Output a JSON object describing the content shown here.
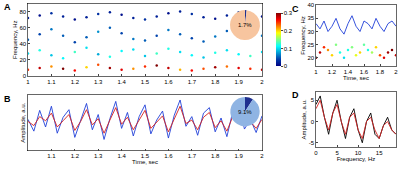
{
  "chart_data": [
    {
      "type": "scatter",
      "label": "A",
      "ylabel": "Frequency, Hz",
      "x": [
        1,
        1.05,
        1.1,
        1.15,
        1.2,
        1.25,
        1.3,
        1.35,
        1.4,
        1.45,
        1.5,
        1.55,
        1.6,
        1.65,
        1.7,
        1.75,
        1.8,
        1.85,
        1.9,
        1.95,
        2
      ],
      "xlim": [
        1,
        2
      ],
      "xticks": [
        1,
        1.1,
        1.2,
        1.3,
        1.4,
        1.5,
        1.6,
        1.7,
        1.8,
        1.9,
        2
      ],
      "ylim": [
        0,
        90
      ],
      "yticks": [
        0,
        20,
        40,
        60,
        80
      ],
      "series": [
        {
          "values": [
            72,
            75,
            78,
            74,
            70,
            73,
            77,
            79,
            76,
            72,
            70,
            74,
            78,
            80,
            77,
            73,
            71,
            75,
            79,
            76,
            74
          ],
          "intensity": [
            0.02,
            0.01,
            0.03,
            0.02,
            0.01,
            0.02,
            0.03,
            0.02,
            0.01,
            0.02,
            0.03,
            0.02,
            0.01,
            0.02,
            0.03,
            0.02,
            0.01,
            0.02,
            0.03,
            0.02,
            0.01
          ]
        },
        {
          "values": [
            45,
            52,
            58,
            50,
            42,
            48,
            55,
            60,
            53,
            46,
            44,
            50,
            57,
            52,
            47,
            43,
            49,
            56,
            60,
            54,
            50
          ],
          "intensity": [
            0.05,
            0.04,
            0.06,
            0.05,
            0.04,
            0.05,
            0.07,
            0.05,
            0.04,
            0.06,
            0.05,
            0.04,
            0.06,
            0.05,
            0.04,
            0.05,
            0.06,
            0.05,
            0.04,
            0.05,
            0.06
          ]
        },
        {
          "values": [
            28,
            32,
            26,
            22,
            30,
            35,
            27,
            24,
            31,
            33,
            25,
            28,
            34,
            30,
            26,
            23,
            29,
            32,
            27,
            25,
            30
          ],
          "intensity": [
            0.1,
            0.12,
            0.09,
            0.11,
            0.13,
            0.1,
            0.08,
            0.12,
            0.11,
            0.1,
            0.09,
            0.13,
            0.12,
            0.1,
            0.11,
            0.09,
            0.12,
            0.1,
            0.11,
            0.13,
            0.1
          ]
        },
        {
          "values": [
            8,
            10,
            12,
            9,
            7,
            11,
            14,
            10,
            8,
            9,
            12,
            13,
            10,
            8,
            7,
            9,
            11,
            12,
            10,
            9,
            8
          ],
          "intensity": [
            0.25,
            0.28,
            0.22,
            0.3,
            0.26,
            0.2,
            0.24,
            0.29,
            0.27,
            0.22,
            0.25,
            0.3,
            0.28,
            0.21,
            0.26,
            0.24,
            0.29,
            0.23,
            0.27,
            0.25,
            0.28
          ]
        }
      ],
      "colorbar": {
        "range": [
          0,
          0.3
        ],
        "ticks": [
          0,
          0.1,
          0.2,
          0.3
        ]
      },
      "inset": {
        "type": "pie",
        "values": [
          1.7,
          98.3
        ],
        "colors": [
          "#1f2f8f",
          "#f7c59f"
        ],
        "label": "1.7%"
      }
    },
    {
      "type": "line",
      "label": "B",
      "xlabel": "Time, sec",
      "ylabel": "Amplitude, a.u.",
      "x": [
        1,
        1.025,
        1.05,
        1.075,
        1.1,
        1.125,
        1.15,
        1.175,
        1.2,
        1.225,
        1.25,
        1.275,
        1.3,
        1.325,
        1.35,
        1.375,
        1.4,
        1.425,
        1.45,
        1.475,
        1.5,
        1.525,
        1.55,
        1.575,
        1.6,
        1.625,
        1.65,
        1.675,
        1.7,
        1.725,
        1.75,
        1.775,
        1.8,
        1.825,
        1.85,
        1.875,
        1.9,
        1.925,
        1.95,
        1.975,
        2
      ],
      "xlim": [
        1,
        2
      ],
      "xticks": [
        1.1,
        1.2,
        1.3,
        1.4,
        1.5,
        1.6,
        1.7,
        1.8,
        1.9,
        2
      ],
      "ylim": [
        -4,
        4
      ],
      "tick_labels": "x",
      "series": [
        {
          "color": "#2040d8",
          "values": [
            0.5,
            -1.2,
            1.8,
            -0.6,
            2.4,
            -1.5,
            0.8,
            1.9,
            -2.1,
            0.3,
            2.8,
            -1.0,
            1.2,
            -2.4,
            0.6,
            3.1,
            -0.8,
            1.5,
            -1.9,
            0.9,
            2.6,
            -1.6,
            0.4,
            1.7,
            -2.2,
            1.1,
            3.3,
            -0.5,
            0.9,
            -1.8,
            1.4,
            2.2,
            -1.3,
            0.7,
            -2.0,
            1.6,
            2.9,
            -0.9,
            0.5,
            -1.4,
            1.0
          ]
        },
        {
          "color": "#d42020",
          "values": [
            0.2,
            -0.4,
            0.9,
            0.3,
            1.4,
            -0.6,
            0.3,
            1.2,
            -1.1,
            0.2,
            1.9,
            -0.3,
            0.6,
            -1.5,
            0.4,
            2.2,
            -0.2,
            0.8,
            -1.0,
            0.5,
            1.8,
            -0.8,
            0.1,
            1.0,
            -1.3,
            0.6,
            2.4,
            -0.1,
            0.4,
            -1.0,
            0.8,
            1.5,
            -0.7,
            0.3,
            -1.2,
            0.9,
            2.0,
            -0.4,
            0.2,
            -0.8,
            0.5
          ]
        }
      ],
      "inset": {
        "type": "pie",
        "values": [
          9.1,
          90.9
        ],
        "colors": [
          "#1f2f8f",
          "#8fb4e3"
        ],
        "label": "9.1%"
      }
    },
    {
      "type": "scatter",
      "label": "C",
      "xlabel": "Time, sec",
      "ylabel": "Frequency, Hz",
      "x": [
        1,
        1.05,
        1.1,
        1.15,
        1.2,
        1.25,
        1.3,
        1.35,
        1.4,
        1.45,
        1.5,
        1.55,
        1.6,
        1.65,
        1.7,
        1.75,
        1.8,
        1.85,
        1.9,
        1.95,
        2
      ],
      "xlim": [
        1,
        2
      ],
      "xticks": [
        1,
        1.2,
        1.4,
        1.6,
        1.8,
        2
      ],
      "ylim": [
        17,
        40
      ],
      "yticks": [
        20,
        25,
        30,
        35,
        40
      ],
      "series": [
        {
          "type": "line",
          "color": "#2040d8",
          "values": [
            33,
            31,
            34,
            30,
            32,
            35,
            31,
            29,
            33,
            36,
            32,
            30,
            34,
            33,
            31,
            35,
            32,
            30,
            33,
            34,
            32
          ]
        },
        {
          "type": "scatter",
          "values": [
            20,
            22,
            24,
            23,
            21,
            25,
            22,
            20,
            23,
            24,
            21,
            22,
            25,
            23,
            22,
            24,
            21,
            20,
            22,
            23,
            21
          ],
          "intensity": [
            0.3,
            0.28,
            0.25,
            0.22,
            0.2,
            0.15,
            0.12,
            0.1,
            0.12,
            0.15,
            0.18,
            0.2,
            0.14,
            0.12,
            0.16,
            0.2,
            0.24,
            0.27,
            0.29,
            0.3,
            0.28
          ]
        }
      ]
    },
    {
      "type": "line",
      "label": "D",
      "xlabel": "Frequency, Hz",
      "ylabel": "Amplitude, a.u.",
      "x": [
        0,
        1,
        2,
        3,
        4,
        5,
        6,
        7,
        8,
        9,
        10,
        11,
        12,
        13,
        14,
        15,
        16,
        17,
        18,
        19
      ],
      "xlim": [
        0,
        19
      ],
      "xticks": [
        0,
        5,
        10,
        15
      ],
      "ylim": [
        -6,
        7
      ],
      "yticks": [
        -5,
        0,
        5
      ],
      "series": [
        {
          "color": "#000000",
          "values": [
            4,
            6,
            1,
            -3,
            2,
            5,
            0,
            -4,
            1,
            3,
            -2,
            -5,
            0,
            2,
            -3,
            -4,
            -1,
            1,
            -2,
            -3
          ]
        },
        {
          "color": "#d42020",
          "values": [
            3,
            5,
            1,
            -2,
            2,
            4,
            0,
            -3,
            1,
            2,
            -2,
            -4,
            0,
            1,
            -2,
            -4,
            -1,
            0,
            -2,
            -3
          ]
        }
      ]
    }
  ]
}
